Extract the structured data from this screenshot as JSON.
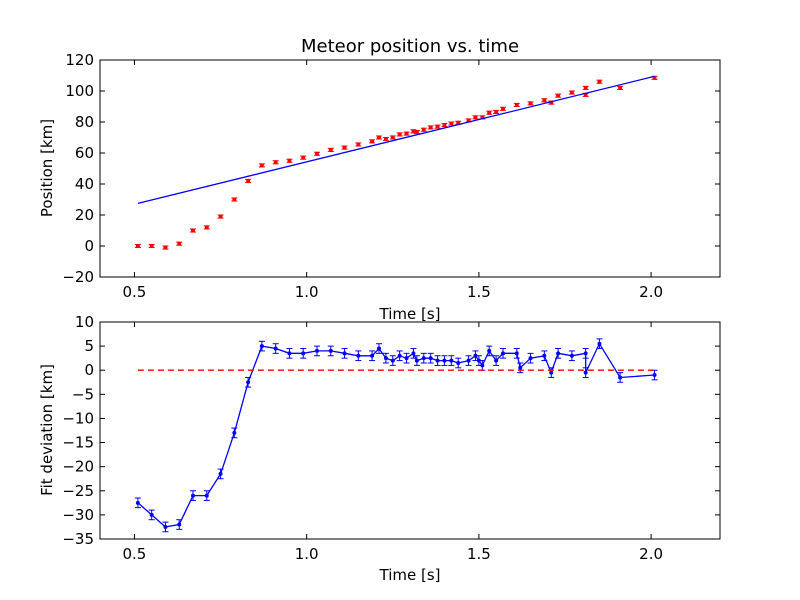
{
  "chart_data": [
    {
      "type": "scatter",
      "title": "Meteor position vs. time",
      "xlabel": "Time [s]",
      "ylabel": "Position [km]",
      "xlim": [
        0.4,
        2.2
      ],
      "ylim": [
        -20,
        120
      ],
      "xticks": [
        0.5,
        1.0,
        1.5,
        2.0
      ],
      "xtick_labels": [
        "0.5",
        "1.0",
        "1.5",
        "2.0"
      ],
      "yticks": [
        -20,
        0,
        20,
        40,
        60,
        80,
        100,
        120
      ],
      "ytick_labels": [
        "−20",
        "0",
        "20",
        "40",
        "60",
        "80",
        "100",
        "120"
      ],
      "grid": false,
      "series": [
        {
          "style": "errorbar-points",
          "color": "#ff0000",
          "err": 1.0,
          "x": [
            0.51,
            0.55,
            0.59,
            0.63,
            0.67,
            0.71,
            0.75,
            0.79,
            0.83,
            0.87,
            0.91,
            0.95,
            0.99,
            1.03,
            1.07,
            1.11,
            1.15,
            1.19,
            1.21,
            1.23,
            1.25,
            1.27,
            1.29,
            1.31,
            1.32,
            1.34,
            1.36,
            1.38,
            1.4,
            1.42,
            1.44,
            1.47,
            1.49,
            1.51,
            1.53,
            1.55,
            1.57,
            1.61,
            1.65,
            1.69,
            1.71,
            1.73,
            1.77,
            1.81,
            1.81,
            1.85,
            1.91,
            2.01
          ],
          "y": [
            0,
            0,
            -1,
            1.5,
            10,
            12,
            19,
            30,
            42,
            52,
            54,
            55,
            57,
            59.5,
            62,
            63.5,
            65.5,
            67.5,
            70,
            69,
            70,
            72,
            72.5,
            74,
            73.5,
            75,
            76.5,
            77,
            78,
            79,
            79.5,
            81,
            83,
            83,
            86,
            86.5,
            88.5,
            91,
            92,
            94,
            92.5,
            97,
            99,
            102,
            97.5,
            106,
            102,
            108.5
          ]
        },
        {
          "style": "line",
          "color": "#0000ff",
          "x": [
            0.51,
            2.01
          ],
          "y": [
            27.5,
            109.5
          ]
        }
      ]
    },
    {
      "type": "line",
      "xlabel": "Time [s]",
      "ylabel": "Fit deviation [km]",
      "xlim": [
        0.4,
        2.2
      ],
      "ylim": [
        -35,
        10
      ],
      "xticks": [
        0.5,
        1.0,
        1.5,
        2.0
      ],
      "xtick_labels": [
        "0.5",
        "1.0",
        "1.5",
        "2.0"
      ],
      "yticks": [
        -35,
        -30,
        -25,
        -20,
        -15,
        -10,
        -5,
        0,
        5,
        10
      ],
      "ytick_labels": [
        "−35",
        "−30",
        "−25",
        "−20",
        "−15",
        "−10",
        "−5",
        "0",
        "5",
        "10"
      ],
      "grid": false,
      "series": [
        {
          "style": "line-errorbar",
          "color": "#0000ff",
          "err": 1.0,
          "x": [
            0.51,
            0.55,
            0.59,
            0.63,
            0.67,
            0.71,
            0.75,
            0.79,
            0.83,
            0.87,
            0.91,
            0.95,
            0.99,
            1.03,
            1.07,
            1.11,
            1.15,
            1.19,
            1.21,
            1.23,
            1.25,
            1.27,
            1.29,
            1.31,
            1.32,
            1.34,
            1.36,
            1.38,
            1.4,
            1.42,
            1.44,
            1.47,
            1.49,
            1.5,
            1.51,
            1.53,
            1.55,
            1.57,
            1.61,
            1.62,
            1.65,
            1.69,
            1.71,
            1.73,
            1.77,
            1.81,
            1.81,
            1.85,
            1.91,
            2.01
          ],
          "y": [
            -27.5,
            -30,
            -32.5,
            -32,
            -26,
            -26,
            -21.5,
            -13,
            -2.5,
            5,
            4.5,
            3.5,
            3.5,
            4,
            4,
            3.5,
            3,
            3,
            4.5,
            2.5,
            2,
            3,
            2.5,
            3.5,
            2,
            2.5,
            2.5,
            2,
            2,
            2,
            1.5,
            2,
            3,
            2,
            1,
            4,
            2,
            3.5,
            3.5,
            0.5,
            2.5,
            3,
            -0.5,
            3.5,
            3,
            3.5,
            -0.5,
            5.5,
            -1.5,
            -1
          ]
        },
        {
          "style": "dashed-line",
          "color": "#ff0000",
          "x": [
            0.51,
            2.01
          ],
          "y": [
            0,
            0
          ]
        }
      ]
    }
  ]
}
